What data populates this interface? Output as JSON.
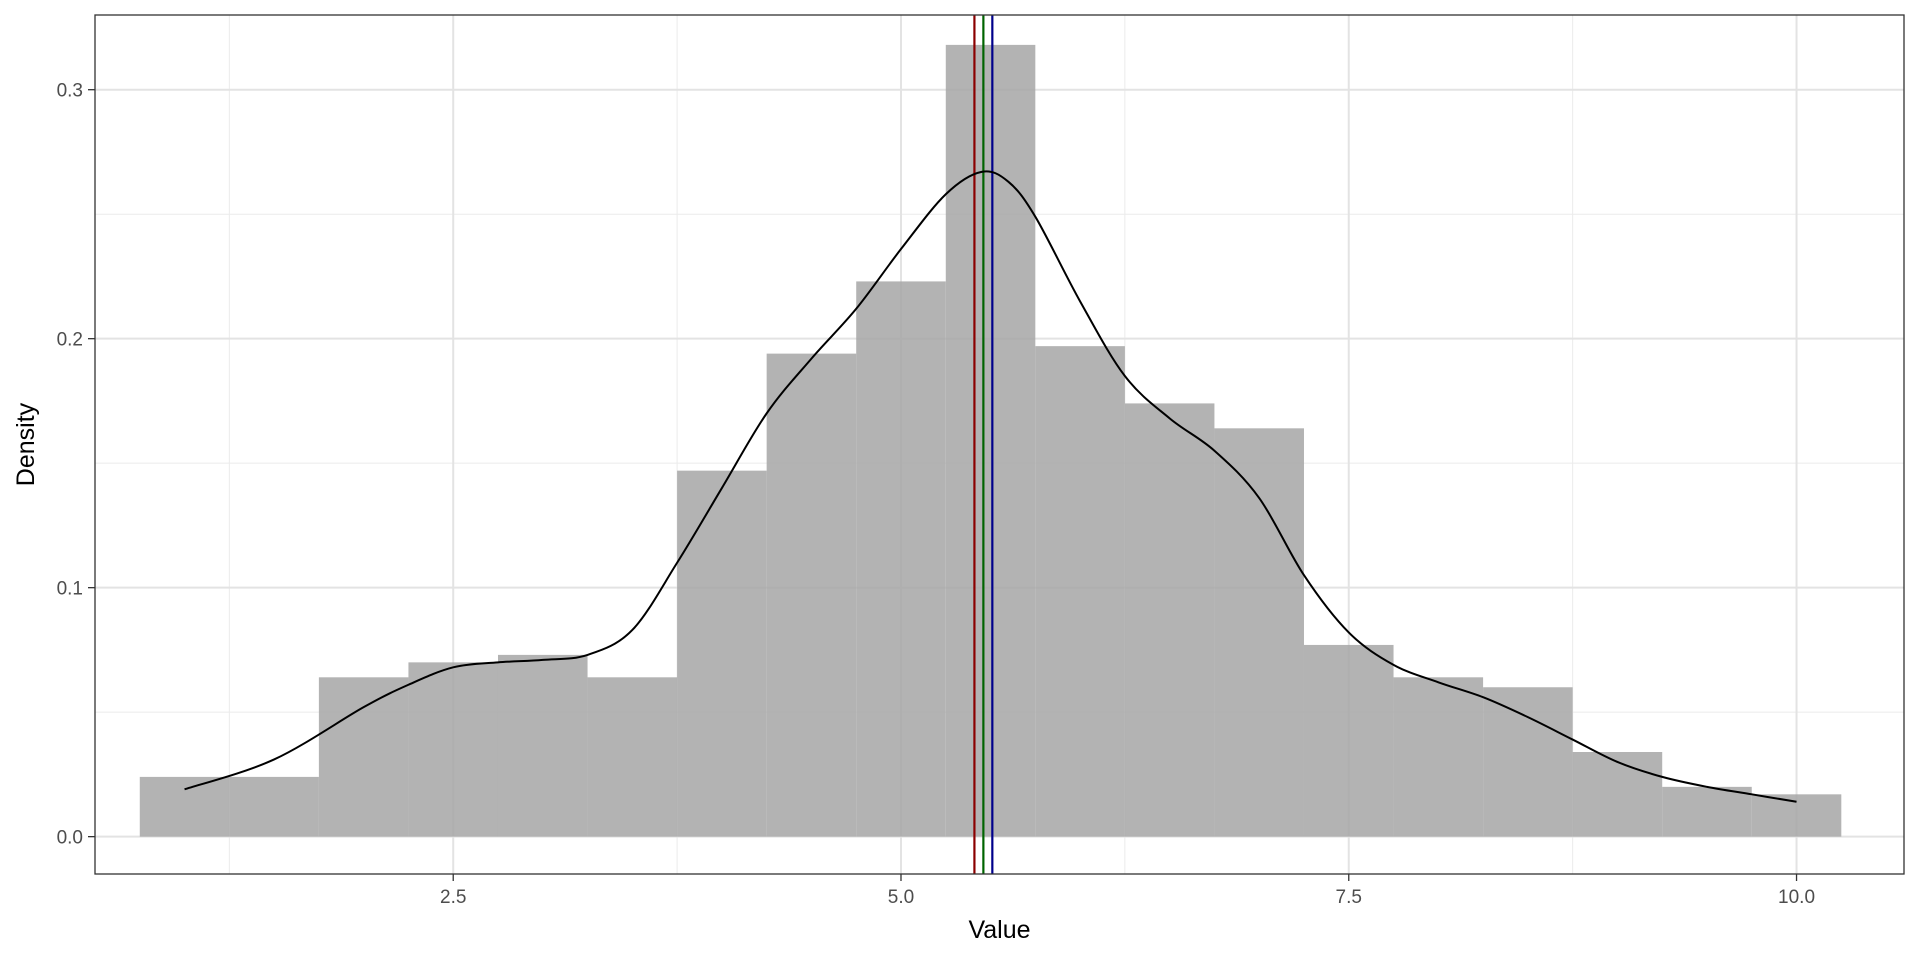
{
  "chart_data": {
    "type": "bar",
    "title": "",
    "xlabel": "Value",
    "ylabel": "Density",
    "xlim": [
      0.5,
      10.6
    ],
    "ylim": [
      -0.015,
      0.33
    ],
    "grid": true,
    "x_ticks": [
      2.5,
      5.0,
      7.5,
      10.0
    ],
    "x_tick_labels": [
      "2.5",
      "5.0",
      "7.5",
      "10.0"
    ],
    "x_minor_ticks": [
      1.25,
      3.75,
      6.25,
      8.75
    ],
    "y_ticks": [
      0.0,
      0.1,
      0.2,
      0.3
    ],
    "y_tick_labels": [
      "0.0",
      "0.1",
      "0.2",
      "0.3"
    ],
    "y_minor_ticks": [
      0.05,
      0.15,
      0.25
    ],
    "bar_color": "#a6a6a6",
    "histogram": {
      "bin_width": 0.5,
      "bins": [
        {
          "x0": 0.75,
          "x1": 1.25,
          "density": 0.024
        },
        {
          "x0": 1.25,
          "x1": 1.75,
          "density": 0.024
        },
        {
          "x0": 1.75,
          "x1": 2.25,
          "density": 0.064
        },
        {
          "x0": 2.25,
          "x1": 2.75,
          "density": 0.07
        },
        {
          "x0": 2.75,
          "x1": 3.25,
          "density": 0.073
        },
        {
          "x0": 3.25,
          "x1": 3.75,
          "density": 0.064
        },
        {
          "x0": 3.75,
          "x1": 4.25,
          "density": 0.147
        },
        {
          "x0": 4.25,
          "x1": 4.75,
          "density": 0.194
        },
        {
          "x0": 4.75,
          "x1": 5.25,
          "density": 0.223
        },
        {
          "x0": 5.25,
          "x1": 5.75,
          "density": 0.318
        },
        {
          "x0": 5.75,
          "x1": 6.25,
          "density": 0.197
        },
        {
          "x0": 6.25,
          "x1": 6.75,
          "density": 0.174
        },
        {
          "x0": 6.75,
          "x1": 7.25,
          "density": 0.164
        },
        {
          "x0": 7.25,
          "x1": 7.75,
          "density": 0.077
        },
        {
          "x0": 7.75,
          "x1": 8.25,
          "density": 0.064
        },
        {
          "x0": 8.25,
          "x1": 8.75,
          "density": 0.06
        },
        {
          "x0": 8.75,
          "x1": 9.25,
          "density": 0.034
        },
        {
          "x0": 9.25,
          "x1": 9.75,
          "density": 0.02
        },
        {
          "x0": 9.75,
          "x1": 10.25,
          "density": 0.017
        }
      ]
    },
    "density_curve": {
      "color": "#000000",
      "x": [
        1.0,
        1.5,
        2.0,
        2.25,
        2.5,
        2.75,
        3.0,
        3.25,
        3.5,
        3.75,
        4.0,
        4.25,
        4.5,
        4.75,
        5.0,
        5.25,
        5.45,
        5.6,
        5.75,
        6.0,
        6.25,
        6.5,
        6.75,
        7.0,
        7.25,
        7.5,
        7.75,
        8.0,
        8.25,
        8.5,
        8.75,
        9.0,
        9.25,
        9.5,
        9.75,
        10.0
      ],
      "y": [
        0.019,
        0.031,
        0.052,
        0.061,
        0.068,
        0.07,
        0.071,
        0.073,
        0.083,
        0.11,
        0.14,
        0.17,
        0.192,
        0.212,
        0.236,
        0.258,
        0.267,
        0.263,
        0.249,
        0.215,
        0.185,
        0.168,
        0.155,
        0.136,
        0.105,
        0.082,
        0.069,
        0.062,
        0.056,
        0.048,
        0.039,
        0.03,
        0.024,
        0.02,
        0.017,
        0.014
      ]
    },
    "vertical_lines": [
      {
        "x": 5.41,
        "color": "#8b0000"
      },
      {
        "x": 5.46,
        "color": "#006400"
      },
      {
        "x": 5.51,
        "color": "#00008b"
      }
    ]
  }
}
